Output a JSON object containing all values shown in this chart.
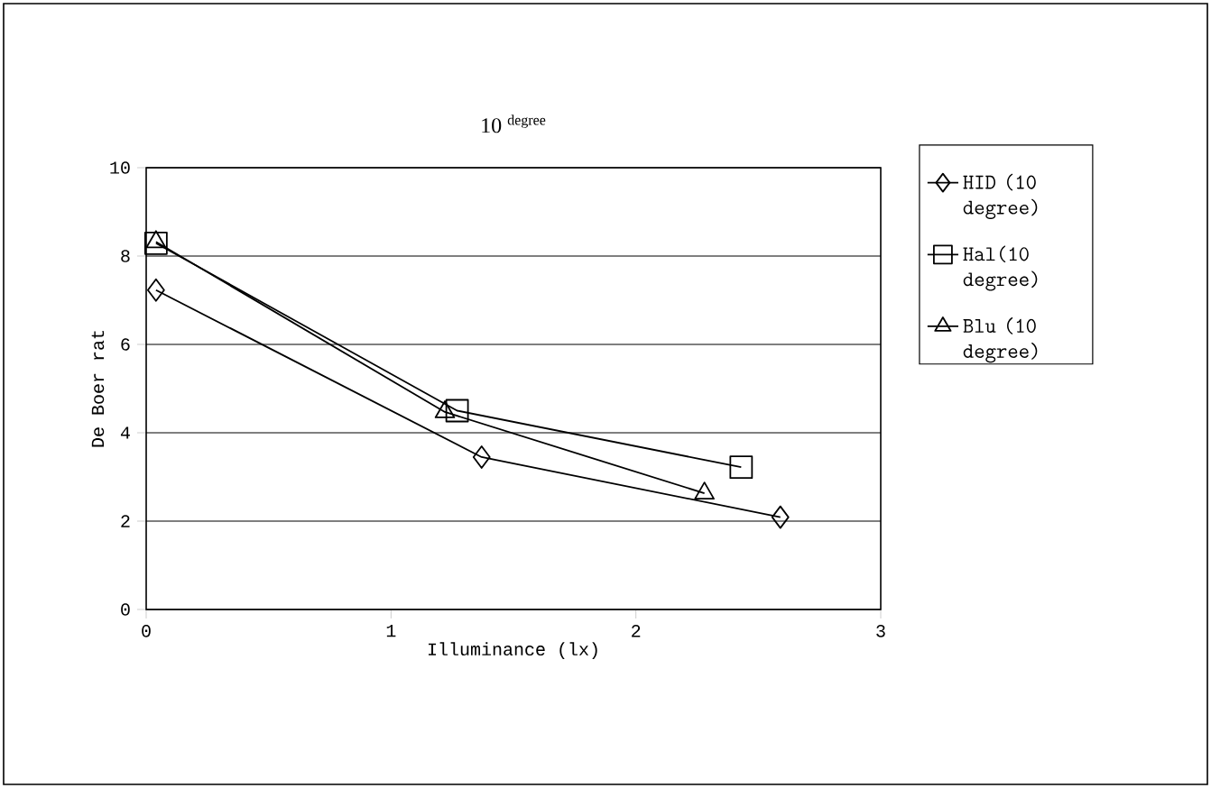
{
  "chart_data": {
    "type": "line",
    "title": "10 $^{degree}$",
    "xlabel": "Illuminance (lx)",
    "ylabel": "De Boer rat",
    "xlim": [
      0,
      3
    ],
    "xticks": [
      0,
      1,
      2,
      3
    ],
    "ylim": [
      0,
      10
    ],
    "yticks": [
      0,
      2,
      4,
      6,
      8,
      10
    ],
    "grid": "y",
    "legend": "right",
    "line_style": "solid",
    "series": [
      {
        "name": "HID (10 degree)",
        "color": "#000000",
        "marker": "diamond",
        "x": [
          0.04,
          1.37,
          2.59
        ],
        "values": [
          7.23,
          3.45,
          2.09
        ]
      },
      {
        "name": "Hal(10 degree)",
        "color": "#000000",
        "marker": "square",
        "x": [
          0.04,
          1.27,
          2.43
        ],
        "values": [
          8.29,
          4.5,
          3.22
        ]
      },
      {
        "name": "Blu (10 degree)",
        "color": "#000000",
        "marker": "triangle",
        "x": [
          0.04,
          1.22,
          2.28
        ],
        "values": [
          8.32,
          4.47,
          2.63
        ]
      }
    ]
  }
}
